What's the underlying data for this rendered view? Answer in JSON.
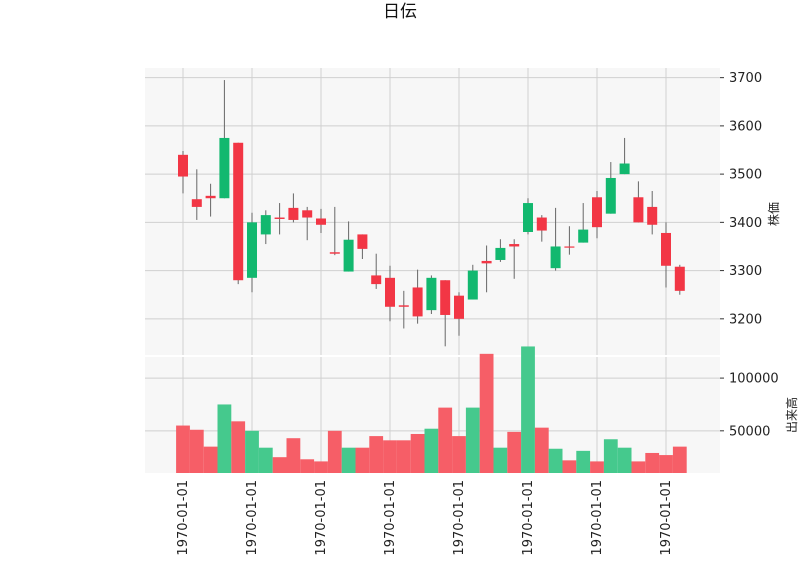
{
  "chart_data": {
    "type": "candlestick",
    "title": "日伝",
    "x_tick_labels": [
      "1970-01-01",
      "1970-01-01",
      "1970-01-01",
      "1970-01-01",
      "1970-01-01",
      "1970-01-01",
      "1970-01-01",
      "1970-01-01"
    ],
    "price_axis": {
      "label": "株価",
      "ylim": [
        3125,
        3720
      ],
      "ticks": [
        3200,
        3300,
        3400,
        3500,
        3600,
        3700
      ]
    },
    "volume_axis": {
      "label": "出来高",
      "ylim": [
        10000,
        120000
      ],
      "ticks": [
        50000,
        100000
      ]
    },
    "grid": true,
    "colors": {
      "up": "#12b86f",
      "down": "#f23645",
      "vol_up": "#45c98d",
      "vol_down": "#f65e67",
      "wick": "#666666",
      "panel_bg": "#f7f7f7",
      "grid": "#d0d0d0"
    },
    "candles": [
      {
        "o": 3540,
        "h": 3548,
        "l": 3460,
        "c": 3495,
        "v": 55000
      },
      {
        "o": 3448,
        "h": 3510,
        "l": 3405,
        "c": 3432,
        "v": 51000
      },
      {
        "o": 3455,
        "h": 3480,
        "l": 3412,
        "c": 3450,
        "v": 35000
      },
      {
        "o": 3450,
        "h": 3695,
        "l": 3450,
        "c": 3575,
        "v": 75000
      },
      {
        "o": 3565,
        "h": 3565,
        "l": 3272,
        "c": 3280,
        "v": 59000
      },
      {
        "o": 3285,
        "h": 3420,
        "l": 3255,
        "c": 3400,
        "v": 50000
      },
      {
        "o": 3375,
        "h": 3425,
        "l": 3355,
        "c": 3415,
        "v": 34000
      },
      {
        "o": 3410,
        "h": 3440,
        "l": 3375,
        "c": 3407,
        "v": 25000
      },
      {
        "o": 3430,
        "h": 3460,
        "l": 3400,
        "c": 3405,
        "v": 43000
      },
      {
        "o": 3425,
        "h": 3432,
        "l": 3363,
        "c": 3410,
        "v": 23000
      },
      {
        "o": 3408,
        "h": 3428,
        "l": 3378,
        "c": 3395,
        "v": 21000
      },
      {
        "o": 3338,
        "h": 3432,
        "l": 3332,
        "c": 3335,
        "v": 50000
      },
      {
        "o": 3298,
        "h": 3402,
        "l": 3298,
        "c": 3364,
        "v": 34000
      },
      {
        "o": 3375,
        "h": 3375,
        "l": 3324,
        "c": 3345,
        "v": 34000
      },
      {
        "o": 3290,
        "h": 3335,
        "l": 3262,
        "c": 3272,
        "v": 45000
      },
      {
        "o": 3285,
        "h": 3310,
        "l": 3195,
        "c": 3225,
        "v": 41000
      },
      {
        "o": 3228,
        "h": 3258,
        "l": 3180,
        "c": 3225,
        "v": 41000
      },
      {
        "o": 3265,
        "h": 3302,
        "l": 3190,
        "c": 3205,
        "v": 47000
      },
      {
        "o": 3218,
        "h": 3290,
        "l": 3210,
        "c": 3285,
        "v": 52000
      },
      {
        "o": 3280,
        "h": 3280,
        "l": 3143,
        "c": 3208,
        "v": 72000
      },
      {
        "o": 3248,
        "h": 3255,
        "l": 3165,
        "c": 3200,
        "v": 45000
      },
      {
        "o": 3240,
        "h": 3312,
        "l": 3240,
        "c": 3300,
        "v": 72000
      },
      {
        "o": 3320,
        "h": 3352,
        "l": 3255,
        "c": 3315,
        "v": 123000
      },
      {
        "o": 3322,
        "h": 3365,
        "l": 3318,
        "c": 3347,
        "v": 34000
      },
      {
        "o": 3355,
        "h": 3365,
        "l": 3283,
        "c": 3350,
        "v": 49000
      },
      {
        "o": 3380,
        "h": 3450,
        "l": 3375,
        "c": 3440,
        "v": 130000
      },
      {
        "o": 3410,
        "h": 3415,
        "l": 3360,
        "c": 3383,
        "v": 53000
      },
      {
        "o": 3305,
        "h": 3430,
        "l": 3300,
        "c": 3350,
        "v": 33000
      },
      {
        "o": 3350,
        "h": 3392,
        "l": 3333,
        "c": 3348,
        "v": 22000
      },
      {
        "o": 3358,
        "h": 3440,
        "l": 3358,
        "c": 3385,
        "v": 31000
      },
      {
        "o": 3452,
        "h": 3465,
        "l": 3367,
        "c": 3390,
        "v": 21000
      },
      {
        "o": 3418,
        "h": 3525,
        "l": 3418,
        "c": 3492,
        "v": 42000
      },
      {
        "o": 3500,
        "h": 3575,
        "l": 3500,
        "c": 3522,
        "v": 34000
      },
      {
        "o": 3452,
        "h": 3485,
        "l": 3400,
        "c": 3400,
        "v": 21000
      },
      {
        "o": 3432,
        "h": 3465,
        "l": 3375,
        "c": 3395,
        "v": 29000
      },
      {
        "o": 3378,
        "h": 3400,
        "l": 3265,
        "c": 3310,
        "v": 27000
      },
      {
        "o": 3308,
        "h": 3312,
        "l": 3250,
        "c": 3258,
        "v": 35000
      }
    ]
  }
}
